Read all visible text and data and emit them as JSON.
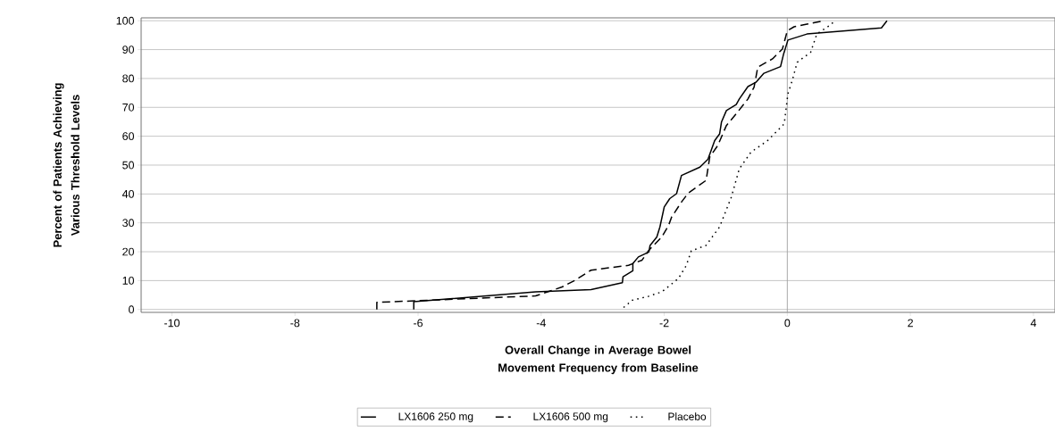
{
  "chart_data": {
    "type": "line",
    "xlabel": "Overall Change in Average Bowel Movement Frequency from Baseline",
    "ylabel": "Percent of Patients Achieving Various Threshold Levels",
    "xlim": [
      -10.5,
      4.35
    ],
    "ylim": [
      -1,
      101
    ],
    "xticks": [
      -10,
      -8,
      -6,
      -4,
      -2,
      0,
      2,
      4
    ],
    "yticks": [
      0,
      10,
      20,
      30,
      40,
      50,
      60,
      70,
      80,
      90,
      100
    ],
    "grid": "y",
    "legend": "bottom",
    "ref_lines": [
      {
        "axis": "x",
        "value": 0,
        "color": "#a0a0a0"
      }
    ],
    "series": [
      {
        "name": "LX1606 250 mg",
        "color": "#000000",
        "line_style": "solid",
        "x": [
          -6.07,
          -6.07,
          -4.09,
          -3.19,
          -2.68,
          -2.67,
          -2.51,
          -2.51,
          -2.42,
          -2.25,
          -2.23,
          -2.12,
          -2.07,
          -2.0,
          -1.91,
          -1.8,
          -1.72,
          -1.42,
          -1.29,
          -1.18,
          -1.1,
          -1.07,
          -0.99,
          -0.83,
          -0.78,
          -0.64,
          -0.51,
          -0.38,
          -0.11,
          -0.06,
          0.01,
          0.32,
          1.53,
          1.62
        ],
        "values": [
          0,
          2.7,
          6.1,
          6.9,
          9.3,
          11.3,
          13.4,
          15.9,
          18.2,
          19.9,
          22.2,
          25.1,
          28.6,
          35.5,
          38.4,
          40.1,
          46.4,
          49.3,
          52.0,
          58.5,
          60.8,
          64.9,
          68.9,
          71.0,
          72.9,
          77.2,
          78.7,
          81.8,
          84.1,
          88.5,
          93.3,
          95.4,
          97.5,
          100
        ]
      },
      {
        "name": "LX1606 500 mg",
        "color": "#000000",
        "line_style": "dashed",
        "x": [
          -6.67,
          -6.67,
          -6.4,
          -4.09,
          -3.66,
          -3.45,
          -3.19,
          -2.58,
          -2.36,
          -2.25,
          -2.04,
          -1.93,
          -1.88,
          -1.72,
          -1.61,
          -1.32,
          -1.26,
          -1.13,
          -0.99,
          -0.81,
          -0.64,
          -0.54,
          -0.48,
          -0.24,
          -0.08,
          0.0,
          0.11,
          0.32,
          0.59
        ],
        "values": [
          0,
          2.5,
          2.7,
          4.7,
          7.8,
          10.1,
          13.6,
          15.3,
          17.1,
          20.5,
          25.1,
          29.1,
          32.0,
          37.2,
          40.3,
          44.7,
          52.8,
          56.8,
          63.7,
          68.3,
          72.9,
          77.0,
          83.9,
          86.8,
          90.2,
          96.5,
          97.9,
          98.8,
          100
        ]
      },
      {
        "name": "Placebo",
        "color": "#000000",
        "line_style": "dotted",
        "x": [
          -2.66,
          -2.52,
          -2.25,
          -2.04,
          -1.77,
          -1.64,
          -1.56,
          -1.32,
          -1.1,
          -0.91,
          -0.78,
          -0.59,
          -0.32,
          -0.05,
          0.01,
          0.08,
          0.16,
          0.38,
          0.48,
          0.72,
          0.76
        ],
        "values": [
          0.7,
          3.2,
          4.6,
          6.1,
          10.7,
          15.3,
          20.3,
          22.2,
          28.6,
          38.9,
          48.7,
          54.5,
          58.5,
          64.3,
          74.7,
          79.3,
          85.6,
          89.1,
          95.4,
          98.8,
          100
        ]
      }
    ]
  }
}
